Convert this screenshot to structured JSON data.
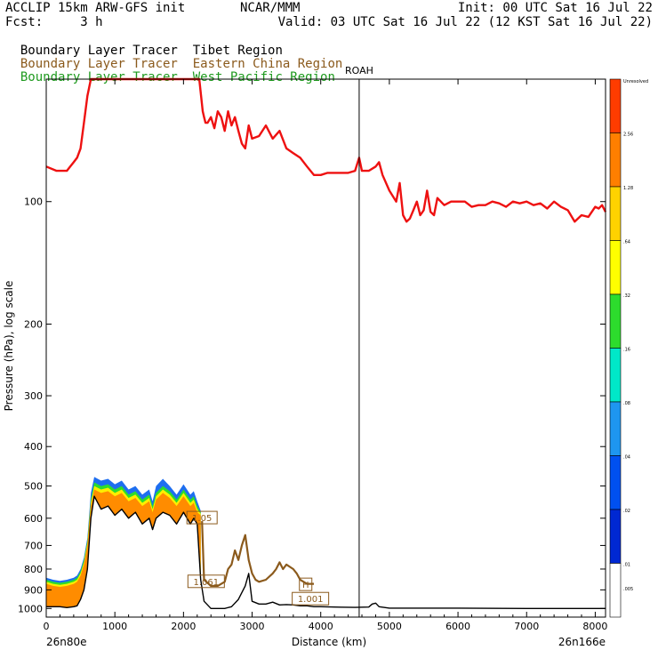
{
  "header": {
    "line1_left": "ACCLIP 15km ARW-GFS init",
    "line1_center": "NCAR/MMM",
    "line1_right": "Init: 00 UTC Sat 16 Jul 22",
    "line2_left": "Fcst:     3 h",
    "line2_right": "Valid: 03 UTC Sat 16 Jul 22 (12 KST Sat 16 Jul 22)"
  },
  "legend": [
    {
      "label": "Boundary Layer Tracer",
      "region": "Tibet Region",
      "color": "#000000"
    },
    {
      "label": "Boundary Layer Tracer",
      "region": "Eastern China Region",
      "color": "#8b5a1c"
    },
    {
      "label": "Boundary Layer Tracer",
      "region": "West Pacific Region",
      "color": "#1f9a1f"
    }
  ],
  "chart_data": {
    "type": "area",
    "xlabel": "Distance (km)",
    "ylabel": "Pressure (hPa), log scale",
    "x_ticks": [
      0,
      1000,
      2000,
      3000,
      4000,
      5000,
      6000,
      7000,
      8000
    ],
    "y_ticks": [
      100,
      200,
      300,
      400,
      500,
      600,
      700,
      800,
      900,
      1000
    ],
    "xlim": [
      0,
      8150
    ],
    "ylim_hpa": [
      1050,
      50
    ],
    "y_scale": "log",
    "x_start_label": "26n80e",
    "x_end_label": "26n166e",
    "marker": {
      "label": "ROAH",
      "x_km": 4560
    },
    "annotations": [
      {
        "text": "1.05",
        "x_km": 2270,
        "p_hpa": 610
      },
      {
        "text": "1.061",
        "x_km": 2330,
        "p_hpa": 875
      },
      {
        "text": "H",
        "x_km": 3780,
        "p_hpa": 890
      },
      {
        "text": "1.001",
        "x_km": 3850,
        "p_hpa": 965
      }
    ],
    "colorbar": {
      "labels": [
        "Unresolved",
        "2.56",
        "1.28",
        ".64",
        ".32",
        ".16",
        ".08",
        ".04",
        ".02",
        ".01",
        ".005"
      ],
      "colors": [
        "#ff3c00",
        "#ff7f00",
        "#ffd200",
        "#ffff00",
        "#2ddc2d",
        "#00e8c8",
        "#1e96f0",
        "#0050f0",
        "#0028d2",
        "#ffffff"
      ]
    },
    "series": [
      {
        "name": "tropopause",
        "color": "#ee1111",
        "x": [
          0,
          150,
          300,
          350,
          400,
          450,
          500,
          550,
          600,
          630,
          650,
          2230,
          2280,
          2300,
          2320,
          2350,
          2400,
          2450,
          2500,
          2550,
          2600,
          2650,
          2700,
          2750,
          2800,
          2850,
          2900,
          2950,
          3000,
          3100,
          3200,
          3300,
          3400,
          3500,
          3600,
          3700,
          3800,
          3900,
          4000,
          4100,
          4200,
          4300,
          4400,
          4500,
          4560,
          4600,
          4700,
          4800,
          4850,
          4900,
          5000,
          5100,
          5150,
          5200,
          5250,
          5300,
          5350,
          5400,
          5450,
          5500,
          5550,
          5600,
          5650,
          5700,
          5800,
          5900,
          6000,
          6100,
          6200,
          6300,
          6400,
          6500,
          6600,
          6700,
          6800,
          6900,
          7000,
          7100,
          7200,
          7300,
          7400,
          7500,
          7600,
          7700,
          7800,
          7900,
          8000,
          8050,
          8100,
          8150
        ],
        "y": [
          82,
          84,
          84,
          82,
          80,
          78,
          74,
          64,
          55,
          52,
          50,
          50,
          60,
          62,
          64,
          64,
          62,
          66,
          60,
          62,
          67,
          60,
          65,
          62,
          67,
          72,
          74,
          65,
          70,
          69,
          65,
          70,
          67,
          74,
          76,
          78,
          82,
          86,
          86,
          85,
          85,
          85,
          85,
          84,
          78,
          84,
          84,
          82,
          80,
          86,
          94,
          100,
          90,
          108,
          112,
          110,
          105,
          100,
          108,
          105,
          94,
          106,
          108,
          98,
          102,
          100,
          100,
          100,
          103,
          102,
          102,
          100,
          101,
          103,
          100,
          101,
          100,
          102,
          101,
          104,
          100,
          103,
          105,
          112,
          108,
          109,
          103,
          104,
          102,
          106
        ]
      },
      {
        "name": "Tibet Region",
        "color": "#000000",
        "x": [
          0,
          100,
          200,
          300,
          400,
          450,
          500,
          550,
          600,
          650,
          700,
          800,
          900,
          1000,
          1100,
          1200,
          1300,
          1400,
          1500,
          1550,
          1600,
          1700,
          1800,
          1900,
          2000,
          2100,
          2150,
          2200,
          2250,
          2300,
          2400,
          2500,
          2600,
          2700,
          2800,
          2900,
          2950,
          3000,
          3100,
          3200,
          3300,
          3400,
          3500,
          3600,
          3700,
          3800,
          3900,
          4000,
          4200,
          4500,
          4700,
          4750,
          4800,
          4850,
          5000,
          6000,
          7000,
          8000,
          8150
        ],
        "y": [
          990,
          990,
          990,
          995,
          990,
          985,
          950,
          900,
          800,
          600,
          530,
          570,
          560,
          590,
          570,
          600,
          580,
          620,
          600,
          640,
          600,
          580,
          590,
          620,
          580,
          620,
          600,
          620,
          850,
          960,
          1000,
          1000,
          1000,
          990,
          950,
          880,
          820,
          960,
          975,
          975,
          965,
          980,
          978,
          980,
          985,
          985,
          990,
          990,
          992,
          994,
          992,
          975,
          970,
          990,
          998,
          998,
          1000,
          1000,
          1000
        ]
      },
      {
        "name": "Eastern China Region",
        "color": "#8b5a1c",
        "x": [
          2270,
          2300,
          2400,
          2500,
          2600,
          2650,
          2700,
          2750,
          2800,
          2850,
          2900,
          2950,
          3000,
          3050,
          3100,
          3200,
          3300,
          3350,
          3400,
          3450,
          3500,
          3550,
          3600,
          3650,
          3700,
          3750,
          3800,
          3850,
          3900
        ],
        "y": [
          610,
          850,
          880,
          880,
          860,
          800,
          780,
          720,
          760,
          700,
          660,
          760,
          820,
          850,
          860,
          850,
          820,
          800,
          770,
          800,
          780,
          790,
          800,
          820,
          850,
          860,
          870,
          870,
          870
        ]
      }
    ],
    "filled_layers": [
      {
        "name": "orange (1.28-2.56)",
        "color": "#ff8c00",
        "x": [
          0,
          100,
          200,
          300,
          400,
          450,
          500,
          550,
          600,
          650,
          700,
          800,
          900,
          1000,
          1100,
          1200,
          1300,
          1400,
          1500,
          1550,
          1600,
          1700,
          1800,
          1900,
          2000,
          2100,
          2150,
          2200,
          2250
        ],
        "y": [
          870,
          880,
          885,
          880,
          870,
          860,
          830,
          780,
          700,
          560,
          510,
          520,
          515,
          530,
          520,
          545,
          535,
          560,
          545,
          580,
          540,
          520,
          535,
          560,
          530,
          560,
          550,
          580,
          590
        ]
      },
      {
        "name": "yellow (.64-1.28)",
        "color": "#ffee00",
        "x": [
          0,
          100,
          200,
          300,
          400,
          450,
          500,
          550,
          600,
          650,
          700,
          800,
          900,
          1000,
          1100,
          1200,
          1300,
          1400,
          1500,
          1550,
          1600,
          1700,
          1800,
          1900,
          2000,
          2100,
          2150,
          2200,
          2250
        ],
        "y": [
          860,
          870,
          875,
          870,
          860,
          850,
          820,
          770,
          690,
          550,
          500,
          510,
          505,
          520,
          510,
          535,
          525,
          550,
          535,
          570,
          530,
          510,
          525,
          550,
          520,
          550,
          540,
          570,
          585
        ]
      },
      {
        "name": "green (.32-.64)",
        "color": "#2ddc2d",
        "x": [
          0,
          100,
          200,
          300,
          400,
          450,
          500,
          550,
          600,
          650,
          700,
          800,
          900,
          1000,
          1100,
          1200,
          1300,
          1400,
          1500,
          1550,
          1600,
          1700,
          1800,
          1900,
          2000,
          2100,
          2150,
          2200,
          2250
        ],
        "y": [
          850,
          860,
          865,
          860,
          850,
          840,
          810,
          760,
          680,
          540,
          490,
          500,
          495,
          510,
          500,
          525,
          515,
          540,
          525,
          560,
          520,
          500,
          515,
          540,
          510,
          540,
          530,
          560,
          580
        ]
      },
      {
        "name": "blue (.04-.16)",
        "color": "#1e6ef0",
        "x": [
          0,
          100,
          200,
          300,
          400,
          450,
          500,
          550,
          600,
          650,
          700,
          800,
          900,
          1000,
          1100,
          1200,
          1300,
          1400,
          1500,
          1550,
          1600,
          1700,
          1800,
          1900,
          2000,
          2100,
          2150,
          2200,
          2250
        ],
        "y": [
          840,
          850,
          855,
          850,
          840,
          830,
          800,
          750,
          670,
          520,
          475,
          485,
          480,
          495,
          485,
          510,
          500,
          525,
          510,
          545,
          500,
          480,
          500,
          525,
          495,
          525,
          515,
          545,
          575
        ]
      }
    ]
  }
}
